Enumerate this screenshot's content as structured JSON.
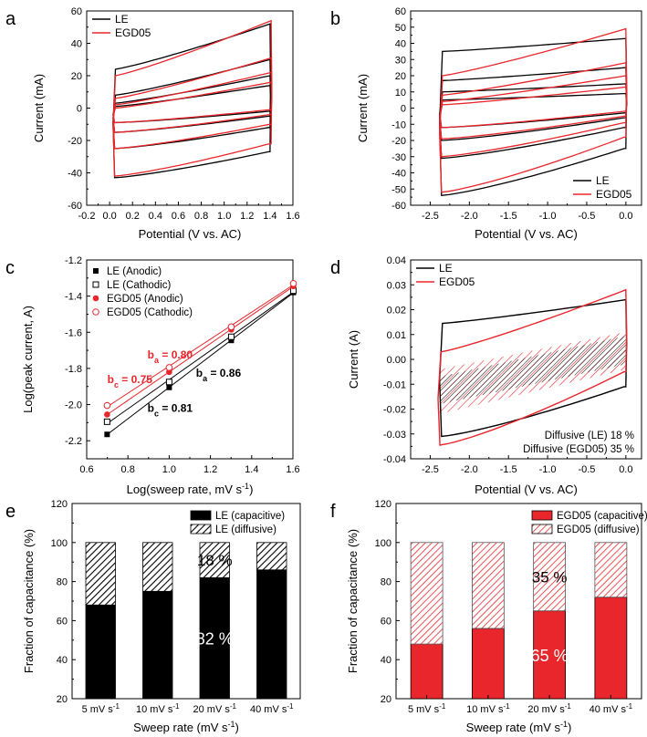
{
  "colors": {
    "le": "#000000",
    "egd": "#e8262b",
    "egd_light": "#f4a6a8",
    "axis": "#000000"
  },
  "chart_data": [
    {
      "id": "a",
      "panel_label": "a",
      "type": "line",
      "xlabel": "Potential (V vs. AC)",
      "ylabel": "Current (mA)",
      "xlim": [
        -0.2,
        1.6
      ],
      "ylim": [
        -60,
        60
      ],
      "xticks": [
        "-0.2",
        "0.0",
        "0.2",
        "0.4",
        "0.6",
        "0.8",
        "1.0",
        "1.2",
        "1.4",
        "1.6"
      ],
      "yticks": [
        "-60",
        "-40",
        "-20",
        "0",
        "20",
        "40",
        "60"
      ],
      "legend": [
        "LE",
        "EGD05"
      ],
      "legend_position": "top-left",
      "series": [
        {
          "name": "LE",
          "loops": [
            {
              "x0": 0.03,
              "x1": 1.4,
              "top_start": 24,
              "top_end": 52,
              "bot_start": -43,
              "bot_end": -27
            },
            {
              "x0": 0.03,
              "x1": 1.4,
              "top_start": 8,
              "top_end": 30,
              "bot_start": -25,
              "bot_end": -12
            },
            {
              "x0": 0.03,
              "x1": 1.4,
              "top_start": 3,
              "top_end": 20,
              "bot_start": -15,
              "bot_end": -5
            },
            {
              "x0": 0.03,
              "x1": 1.4,
              "top_start": 1,
              "top_end": 14,
              "bot_start": -9,
              "bot_end": -2
            }
          ]
        },
        {
          "name": "EGD05",
          "loops": [
            {
              "x0": 0.03,
              "x1": 1.41,
              "top_start": 20,
              "top_end": 54,
              "bot_start": -42,
              "bot_end": -22
            },
            {
              "x0": 0.03,
              "x1": 1.41,
              "top_start": 6,
              "top_end": 31,
              "bot_start": -25,
              "bot_end": -10
            },
            {
              "x0": 0.03,
              "x1": 1.41,
              "top_start": 2,
              "top_end": 22,
              "bot_start": -15,
              "bot_end": -4
            },
            {
              "x0": 0.03,
              "x1": 1.41,
              "top_start": 0,
              "top_end": 16,
              "bot_start": -9,
              "bot_end": -1
            }
          ]
        }
      ]
    },
    {
      "id": "b",
      "panel_label": "b",
      "type": "line",
      "xlabel": "Potential (V vs. AC)",
      "ylabel": "Current (mA)",
      "xlim": [
        -2.75,
        0.2
      ],
      "ylim": [
        -60,
        60
      ],
      "xticks": [
        "-2.5",
        "-2.0",
        "-1.5",
        "-1.0",
        "-0.5",
        "0.0"
      ],
      "xtick_values": [
        -2.5,
        -2.0,
        -1.5,
        -1.0,
        -0.5,
        0.0
      ],
      "yticks": [
        "-60",
        "-50",
        "-40",
        "-30",
        "-20",
        "-10",
        "0",
        "10",
        "20",
        "30",
        "40",
        "50",
        "60"
      ],
      "legend": [
        "LE",
        "EGD05"
      ],
      "legend_position": "bottom-right",
      "series": [
        {
          "name": "LE",
          "loops": [
            {
              "x0": -2.38,
              "x1": 0.0,
              "top_start": 35,
              "top_end": 43,
              "bot_start": -54,
              "bot_end": -25
            },
            {
              "x0": -2.38,
              "x1": 0.0,
              "top_start": 17,
              "top_end": 25,
              "bot_start": -31,
              "bot_end": -12
            },
            {
              "x0": -2.38,
              "x1": 0.0,
              "top_start": 10,
              "top_end": 15,
              "bot_start": -20,
              "bot_end": -6
            },
            {
              "x0": -2.38,
              "x1": 0.0,
              "top_start": 5,
              "top_end": 9,
              "bot_start": -12,
              "bot_end": -3
            }
          ]
        },
        {
          "name": "EGD05",
          "loops": [
            {
              "x0": -2.38,
              "x1": 0.0,
              "top_start": 20,
              "top_end": 49,
              "bot_start": -52,
              "bot_end": -18
            },
            {
              "x0": -2.38,
              "x1": 0.0,
              "top_start": 8,
              "top_end": 28,
              "bot_start": -30,
              "bot_end": -9
            },
            {
              "x0": -2.38,
              "x1": 0.0,
              "top_start": 4,
              "top_end": 20,
              "bot_start": -19,
              "bot_end": -5
            },
            {
              "x0": -2.38,
              "x1": 0.0,
              "top_start": 2,
              "top_end": 13,
              "bot_start": -12,
              "bot_end": -2
            }
          ]
        }
      ]
    },
    {
      "id": "c",
      "panel_label": "c",
      "type": "scatter",
      "xlabel": "Log(sweep rate, mV s-1)",
      "ylabel": "Log(peak current, A)",
      "xlim": [
        0.6,
        1.6
      ],
      "ylim": [
        -2.3,
        -1.2
      ],
      "xticks": [
        "0.6",
        "0.8",
        "1.0",
        "1.2",
        "1.4",
        "1.6"
      ],
      "yticks": [
        "-2.2",
        "-2.0",
        "-1.8",
        "-1.6",
        "-1.4",
        "-1.2"
      ],
      "legend": [
        "LE (Anodic)",
        "LE (Cathodic)",
        "EGD05 (Anodic)",
        "EGD05 (Cathodic)"
      ],
      "legend_position": "top-left",
      "x": [
        0.699,
        1.0,
        1.301,
        1.602
      ],
      "series": [
        {
          "name": "LE (Anodic)",
          "marker": "filled-square",
          "values": [
            -2.165,
            -1.905,
            -1.645,
            -1.38
          ]
        },
        {
          "name": "LE (Cathodic)",
          "marker": "open-square",
          "values": [
            -2.095,
            -1.875,
            -1.625,
            -1.37
          ]
        },
        {
          "name": "EGD05 (Anodic)",
          "marker": "filled-circle",
          "values": [
            -2.055,
            -1.82,
            -1.585,
            -1.345
          ]
        },
        {
          "name": "EGD05 (Cathodic)",
          "marker": "open-circle",
          "values": [
            -2.005,
            -1.795,
            -1.57,
            -1.33
          ]
        }
      ],
      "annotations": [
        {
          "text": "b",
          "sub": "a",
          "rest": " = 0.80",
          "color": "red"
        },
        {
          "text": "b",
          "sub": "c",
          "rest": " = 0.75",
          "color": "red"
        },
        {
          "text": "b",
          "sub": "a",
          "rest": " = 0.86",
          "color": "black"
        },
        {
          "text": "b",
          "sub": "c",
          "rest": " = 0.81",
          "color": "black"
        }
      ]
    },
    {
      "id": "d",
      "panel_label": "d",
      "type": "area",
      "xlabel": "Potential (V vs. AC)",
      "ylabel": "Current (A)",
      "xlim": [
        -2.75,
        0.2
      ],
      "ylim": [
        -0.04,
        0.04
      ],
      "xticks": [
        "-2.5",
        "-2.0",
        "-1.5",
        "-1.0",
        "-0.5",
        "0.0"
      ],
      "xtick_values": [
        -2.5,
        -2.0,
        -1.5,
        -1.0,
        -0.5,
        0.0
      ],
      "yticks": [
        "-0.04",
        "-0.03",
        "-0.02",
        "-0.01",
        "0.00",
        "0.01",
        "0.02",
        "0.03",
        "0.04"
      ],
      "legend": [
        "LE",
        "EGD05"
      ],
      "legend_position": "top-left",
      "series": [
        {
          "name": "LE",
          "loop": {
            "x0": -2.38,
            "x1": 0.0,
            "top_start": 0.0145,
            "top_end": 0.024,
            "bot_start": -0.031,
            "bot_end": -0.011
          }
        },
        {
          "name": "EGD05",
          "loop": {
            "x0": -2.4,
            "x1": 0.0,
            "top_start": 0.003,
            "top_end": 0.028,
            "bot_start": -0.0345,
            "bot_end": -0.005
          }
        }
      ],
      "diffusive_bands": [
        {
          "name": "LE (diffusive)",
          "x0": -2.38,
          "x1": 0.0,
          "upper": [
            -0.007,
            0.0095
          ],
          "lower": [
            -0.018,
            -0.002
          ]
        },
        {
          "name": "EGD05 (diffusive)",
          "x0": -2.38,
          "x1": 0.0,
          "upper": [
            -0.004,
            0.011
          ],
          "lower": [
            -0.022,
            -0.004
          ]
        }
      ],
      "annotations": [
        "Diffusive (LE) 18 %",
        "Diffusive (EGD05) 35 %"
      ]
    },
    {
      "id": "e",
      "panel_label": "e",
      "type": "bar",
      "xlabel": "Sweep rate (mV s-1)",
      "ylabel": "Fraction of capacitance (%)",
      "ylim": [
        20,
        120
      ],
      "yticks": [
        "20",
        "40",
        "60",
        "80",
        "100",
        "120"
      ],
      "categories": [
        "5 mV s",
        "10 mV s",
        "20 mV s",
        "40 mV s"
      ],
      "category_exponent": "-1",
      "legend": [
        "LE (capacitive)",
        "LE (diffusive)"
      ],
      "legend_position": "top-right",
      "series": [
        {
          "name": "LE (capacitive)",
          "values": [
            68,
            75,
            82,
            86
          ]
        },
        {
          "name": "LE (diffusive)",
          "values": [
            32,
            25,
            18,
            14
          ]
        }
      ],
      "labels": {
        "capacitive": "82 %",
        "diffusive": "18 %"
      }
    },
    {
      "id": "f",
      "panel_label": "f",
      "type": "bar",
      "xlabel": "Sweep rate (mV s-1)",
      "ylabel": "Fraction of capacitance (%)",
      "ylim": [
        20,
        120
      ],
      "yticks": [
        "20",
        "40",
        "60",
        "80",
        "100",
        "120"
      ],
      "categories": [
        "5 mV s",
        "10 mV s",
        "20 mV s",
        "40 mV s"
      ],
      "category_exponent": "-1",
      "legend": [
        "EGD05 (capacitive)",
        "EGD05 (diffusive)"
      ],
      "legend_position": "top-right",
      "series": [
        {
          "name": "EGD05 (capacitive)",
          "values": [
            48,
            56,
            65,
            72
          ]
        },
        {
          "name": "EGD05 (diffusive)",
          "values": [
            52,
            44,
            35,
            28
          ]
        }
      ],
      "labels": {
        "capacitive": "65 %",
        "diffusive": "35 %"
      }
    }
  ]
}
